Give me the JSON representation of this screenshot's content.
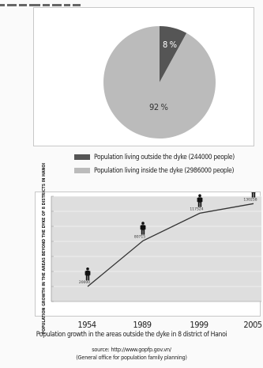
{
  "colors": {
    "outside_dyke": "#555555",
    "inside_dyke": "#bbbbbb",
    "plot_bg": "#dedede",
    "line": "#333333"
  },
  "icons": {
    "population_marker": "person-icon"
  },
  "chart_data": [
    {
      "type": "pie",
      "labels": [
        "Population living outside the dyke (244000 people)",
        "Population living inside the dyke (2986000 people)"
      ],
      "values": [
        8,
        92
      ],
      "value_labels": [
        "8 %",
        "92 %"
      ],
      "legend": "bottom"
    },
    {
      "type": "line",
      "x": [
        "1954",
        "1989",
        "1999",
        "2005"
      ],
      "y": [
        20000,
        80715,
        117524,
        130258
      ],
      "value_labels": [
        "20000",
        "80715",
        "117524",
        "130258"
      ],
      "ylabel": "POPULATION GROWTH IN THE AREAS BEYOND THE DYKE OF 8 DISTRICTS IN HANOI",
      "ylim": [
        0,
        140000
      ],
      "grid": true,
      "caption": "Population growth in the areas outside the dyke in 8 district of Hanoi",
      "source_lines": [
        "source: http://www.gopfp.gov.vn/",
        "(General office for population family planning)"
      ]
    }
  ]
}
